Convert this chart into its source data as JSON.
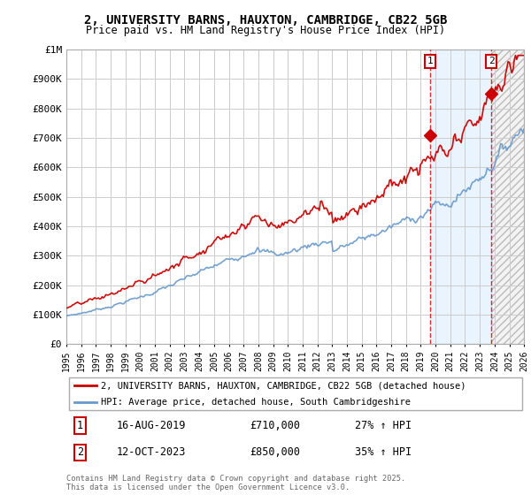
{
  "title1": "2, UNIVERSITY BARNS, HAUXTON, CAMBRIDGE, CB22 5GB",
  "title2": "Price paid vs. HM Land Registry's House Price Index (HPI)",
  "background_color": "#ffffff",
  "plot_bg_color": "#ffffff",
  "grid_color": "#cccccc",
  "red_color": "#cc0000",
  "blue_color": "#6699cc",
  "shade_color": "#ddeeff",
  "legend_line1": "2, UNIVERSITY BARNS, HAUXTON, CAMBRIDGE, CB22 5GB (detached house)",
  "legend_line2": "HPI: Average price, detached house, South Cambridgeshire",
  "annotation1_label": "1",
  "annotation1_date": "16-AUG-2019",
  "annotation1_price": "£710,000",
  "annotation1_hpi": "27% ↑ HPI",
  "annotation1_year": 2019.62,
  "annotation1_value": 710000,
  "annotation2_label": "2",
  "annotation2_date": "12-OCT-2023",
  "annotation2_price": "£850,000",
  "annotation2_hpi": "35% ↑ HPI",
  "annotation2_year": 2023.78,
  "annotation2_value": 850000,
  "footer": "Contains HM Land Registry data © Crown copyright and database right 2025.\nThis data is licensed under the Open Government Licence v3.0.",
  "ylim": [
    0,
    1000000
  ],
  "yticks": [
    0,
    100000,
    200000,
    300000,
    400000,
    500000,
    600000,
    700000,
    800000,
    900000,
    1000000
  ],
  "ytick_labels": [
    "£0",
    "£100K",
    "£200K",
    "£300K",
    "£400K",
    "£500K",
    "£600K",
    "£700K",
    "£800K",
    "£900K",
    "£1M"
  ],
  "xmin": 1995,
  "xmax": 2026
}
